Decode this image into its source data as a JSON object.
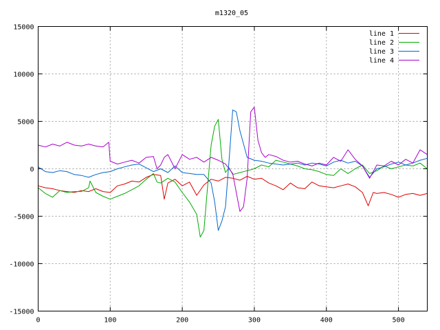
{
  "chart_data": {
    "type": "line",
    "title": "m1320_05",
    "xlabel": "",
    "ylabel": "",
    "xlim": [
      0,
      540
    ],
    "ylim": [
      -15000,
      15000
    ],
    "xticks": [
      0,
      100,
      200,
      300,
      400,
      500
    ],
    "yticks": [
      -15000,
      -10000,
      -5000,
      0,
      5000,
      10000,
      15000
    ],
    "grid": true,
    "legend_position": "top-right",
    "series": [
      {
        "name": "line 1",
        "color": "#dd0000",
        "x": [
          0,
          10,
          20,
          30,
          40,
          50,
          60,
          70,
          80,
          90,
          100,
          110,
          120,
          130,
          140,
          150,
          160,
          170,
          175,
          180,
          190,
          200,
          210,
          220,
          230,
          240,
          250,
          260,
          270,
          280,
          290,
          300,
          310,
          320,
          330,
          340,
          350,
          360,
          370,
          380,
          390,
          400,
          410,
          420,
          430,
          440,
          450,
          458,
          465,
          470,
          480,
          490,
          500,
          510,
          520,
          530,
          540
        ],
        "y": [
          -1800,
          -2000,
          -2100,
          -2300,
          -2400,
          -2500,
          -2300,
          -2400,
          -2100,
          -2400,
          -2500,
          -1800,
          -1600,
          -1300,
          -1400,
          -900,
          -600,
          -700,
          -3200,
          -1500,
          -1100,
          -1800,
          -1400,
          -2800,
          -1700,
          -1100,
          -1300,
          -900,
          -1000,
          -1200,
          -800,
          -1100,
          -1000,
          -1500,
          -1800,
          -2200,
          -1500,
          -2000,
          -2100,
          -1400,
          -1800,
          -1900,
          -2000,
          -1800,
          -1600,
          -1900,
          -2500,
          -3900,
          -2500,
          -2600,
          -2500,
          -2700,
          -3000,
          -2700,
          -2600,
          -2800,
          -2600
        ]
      },
      {
        "name": "line 2",
        "color": "#00aa00",
        "x": [
          0,
          10,
          20,
          30,
          40,
          50,
          60,
          70,
          72,
          80,
          90,
          100,
          110,
          120,
          130,
          140,
          150,
          160,
          165,
          170,
          180,
          190,
          200,
          210,
          220,
          225,
          230,
          235,
          240,
          245,
          250,
          255,
          260,
          265,
          270,
          280,
          290,
          300,
          310,
          320,
          330,
          340,
          350,
          360,
          370,
          380,
          390,
          400,
          410,
          420,
          430,
          440,
          450,
          460,
          470,
          480,
          490,
          500,
          510,
          520,
          530,
          540
        ],
        "y": [
          -2000,
          -2600,
          -3000,
          -2300,
          -2500,
          -2400,
          -2400,
          -2000,
          -1300,
          -2500,
          -2900,
          -3200,
          -2900,
          -2600,
          -2200,
          -1800,
          -1100,
          -500,
          -1400,
          -1500,
          -1000,
          -1400,
          -2500,
          -3500,
          -4800,
          -7200,
          -6500,
          -2000,
          2500,
          4500,
          5200,
          1000,
          -400,
          100,
          -600,
          -400,
          -200,
          0,
          400,
          200,
          900,
          700,
          500,
          300,
          0,
          -100,
          -300,
          -600,
          -700,
          0,
          -500,
          0,
          400,
          -500,
          -200,
          300,
          0,
          200,
          400,
          300,
          600,
          0
        ]
      },
      {
        "name": "line 3",
        "color": "#0066cc",
        "x": [
          0,
          10,
          20,
          30,
          40,
          50,
          60,
          70,
          80,
          90,
          100,
          110,
          120,
          130,
          140,
          150,
          160,
          170,
          180,
          190,
          200,
          210,
          220,
          230,
          240,
          245,
          250,
          255,
          260,
          265,
          270,
          275,
          280,
          290,
          300,
          310,
          320,
          330,
          340,
          350,
          360,
          370,
          380,
          390,
          400,
          410,
          420,
          430,
          440,
          450,
          460,
          470,
          480,
          490,
          500,
          510,
          520,
          530,
          540
        ],
        "y": [
          200,
          -300,
          -400,
          -200,
          -300,
          -600,
          -700,
          -900,
          -600,
          -400,
          -300,
          0,
          200,
          400,
          500,
          100,
          -300,
          0,
          -400,
          300,
          -400,
          -500,
          -600,
          -600,
          -1500,
          -3500,
          -6500,
          -5500,
          -4000,
          1000,
          6200,
          6000,
          4000,
          1200,
          900,
          800,
          600,
          500,
          400,
          500,
          600,
          400,
          600,
          500,
          300,
          700,
          900,
          600,
          800,
          300,
          -900,
          0,
          200,
          500,
          700,
          400,
          600,
          900,
          1100
        ]
      },
      {
        "name": "line 4",
        "color": "#aa00cc",
        "x": [
          0,
          10,
          20,
          30,
          40,
          50,
          60,
          70,
          80,
          90,
          98,
          100,
          110,
          120,
          130,
          140,
          150,
          160,
          165,
          170,
          175,
          180,
          190,
          200,
          210,
          220,
          230,
          240,
          250,
          260,
          270,
          275,
          280,
          285,
          290,
          295,
          300,
          305,
          310,
          315,
          320,
          330,
          340,
          350,
          360,
          370,
          380,
          390,
          400,
          410,
          420,
          430,
          440,
          450,
          460,
          470,
          480,
          490,
          500,
          510,
          520,
          530,
          540
        ],
        "y": [
          2500,
          2300,
          2600,
          2400,
          2800,
          2500,
          2400,
          2600,
          2400,
          2300,
          2800,
          800,
          500,
          700,
          900,
          600,
          1200,
          1300,
          0,
          400,
          1200,
          1500,
          0,
          1500,
          1000,
          1200,
          700,
          1200,
          900,
          500,
          -500,
          -2500,
          -4500,
          -4000,
          -1000,
          6000,
          6500,
          3000,
          1700,
          1200,
          1500,
          1300,
          900,
          700,
          800,
          500,
          300,
          600,
          400,
          1200,
          800,
          2000,
          1000,
          300,
          -1000,
          400,
          300,
          800,
          400,
          1000,
          600,
          2000,
          1500
        ]
      }
    ]
  }
}
